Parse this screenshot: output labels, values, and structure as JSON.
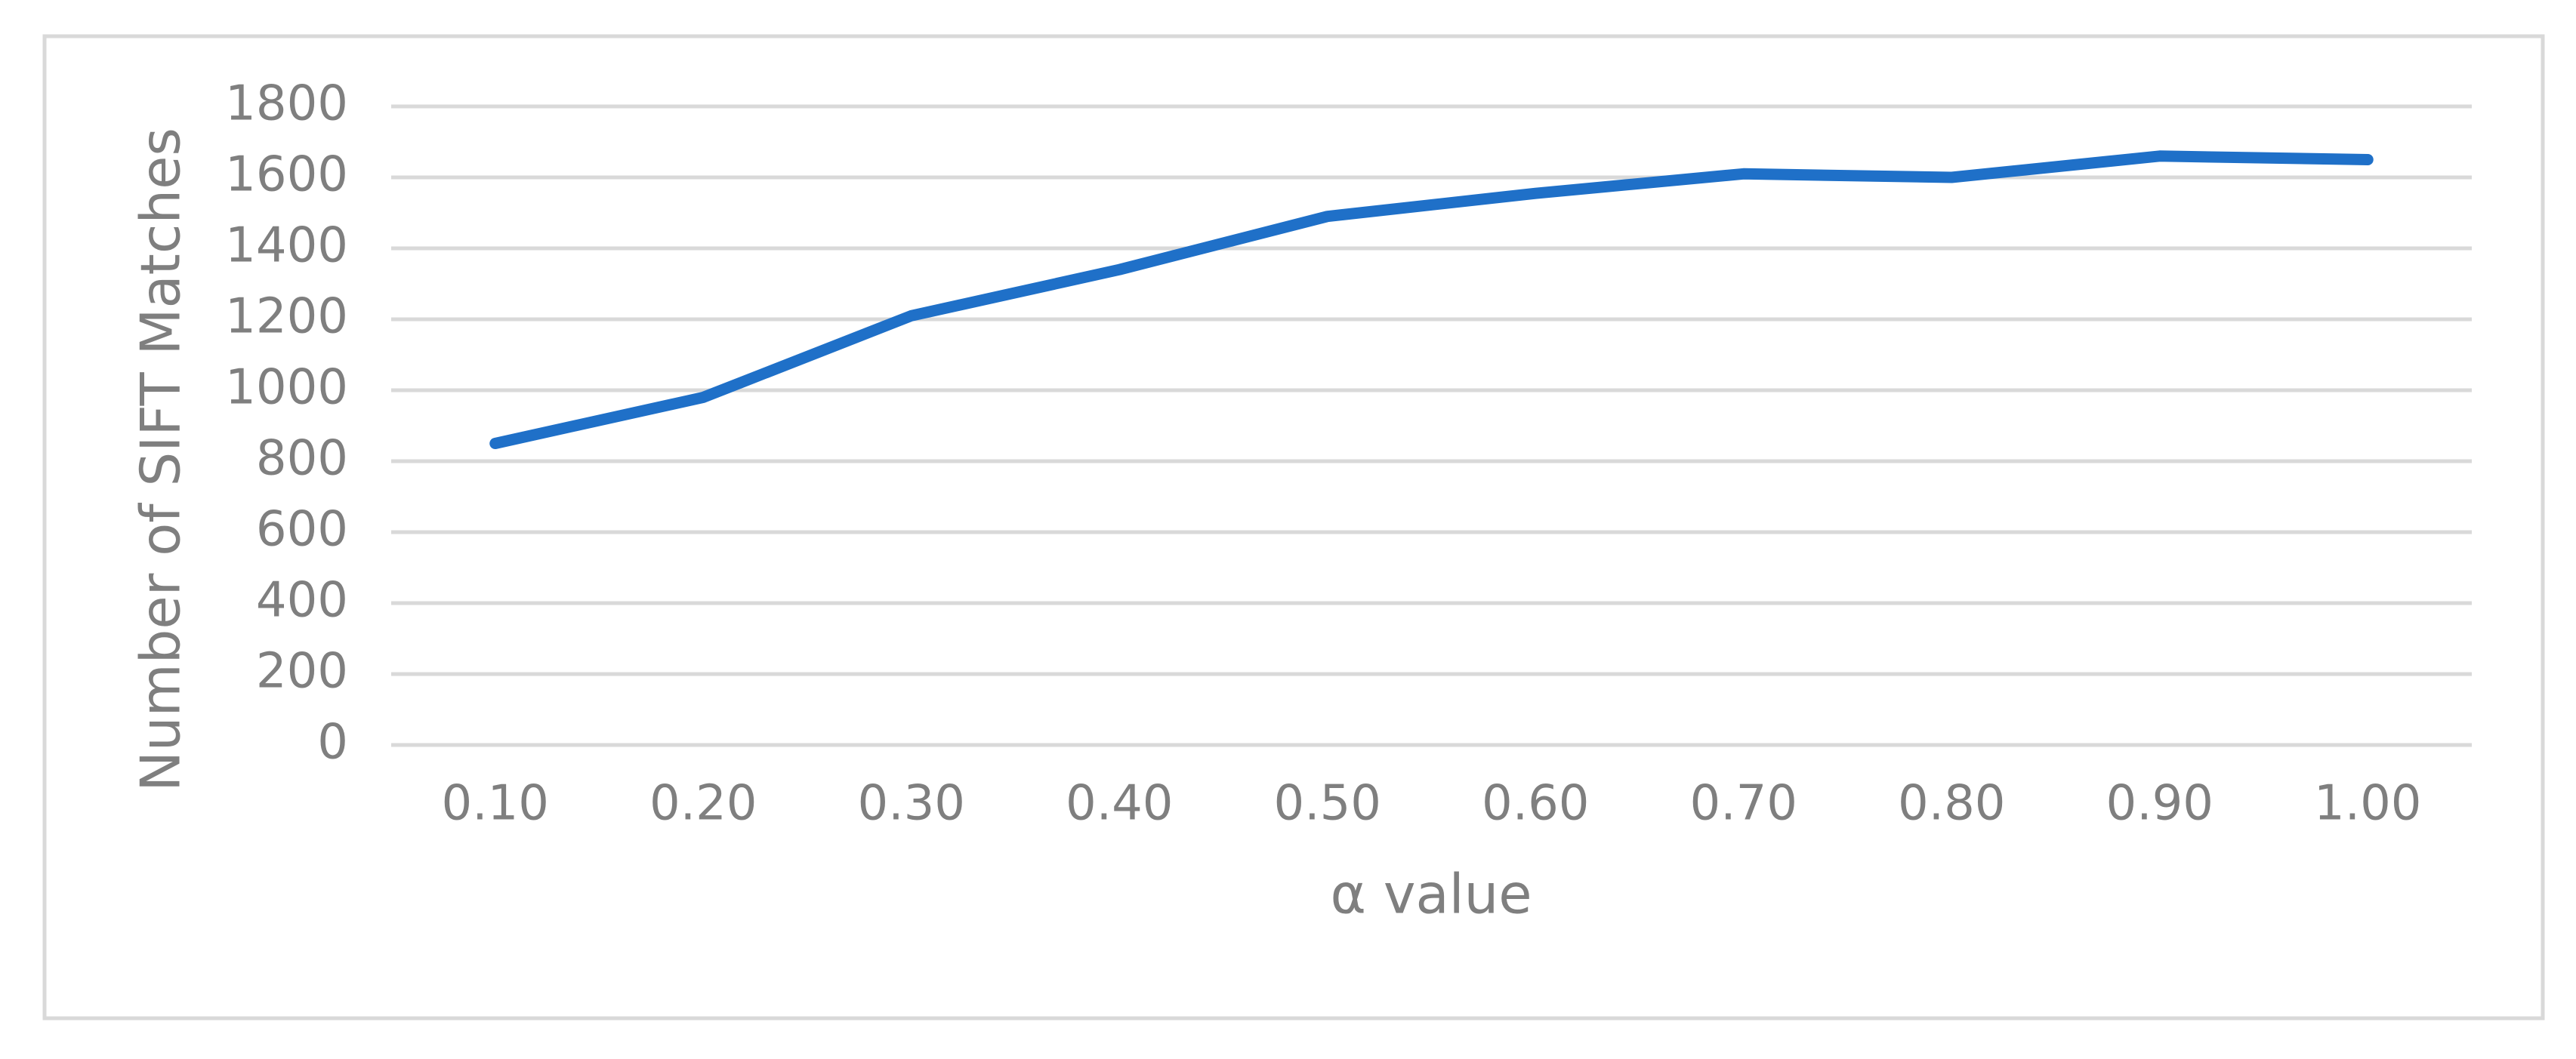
{
  "chart_data": {
    "type": "line",
    "x_label": "α value",
    "y_label": "Number of SIFT Matches",
    "categories": [
      "0.10",
      "0.20",
      "0.30",
      "0.40",
      "0.50",
      "0.60",
      "0.70",
      "0.80",
      "0.90",
      "1.00"
    ],
    "values": [
      850,
      980,
      1210,
      1340,
      1490,
      1555,
      1610,
      1600,
      1660,
      1650
    ],
    "color": "#1f70c8",
    "ylim": [
      0,
      1800
    ],
    "yticks": [
      0,
      200,
      400,
      600,
      800,
      1000,
      1200,
      1400,
      1600,
      1800
    ],
    "grid": true
  }
}
